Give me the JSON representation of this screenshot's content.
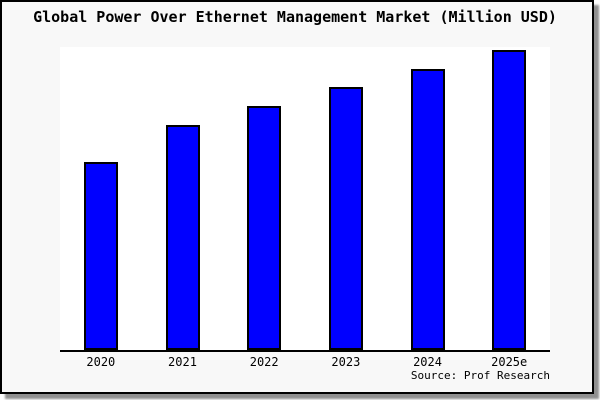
{
  "window": {
    "background_color": "#f8f8f8",
    "border_color": "#000000",
    "shadow_color": "#8f8f8f",
    "plot_background_color": "#ffffff"
  },
  "chart_data": {
    "type": "bar",
    "title": "Global Power Over Ethernet Management Market (Million USD)",
    "categories": [
      "2020",
      "2021",
      "2022",
      "2023",
      "2024",
      "2025e"
    ],
    "values": [
      62.7,
      75.0,
      81.3,
      87.7,
      93.7,
      100.0
    ],
    "xlabel": "",
    "ylabel": "",
    "ylim": [
      0,
      101
    ],
    "grid": false,
    "legend": null,
    "axis_line": "bottom-only",
    "bar_color": "#0000ff",
    "bar_border_color": "#000000",
    "source": "Source: Prof Research"
  }
}
